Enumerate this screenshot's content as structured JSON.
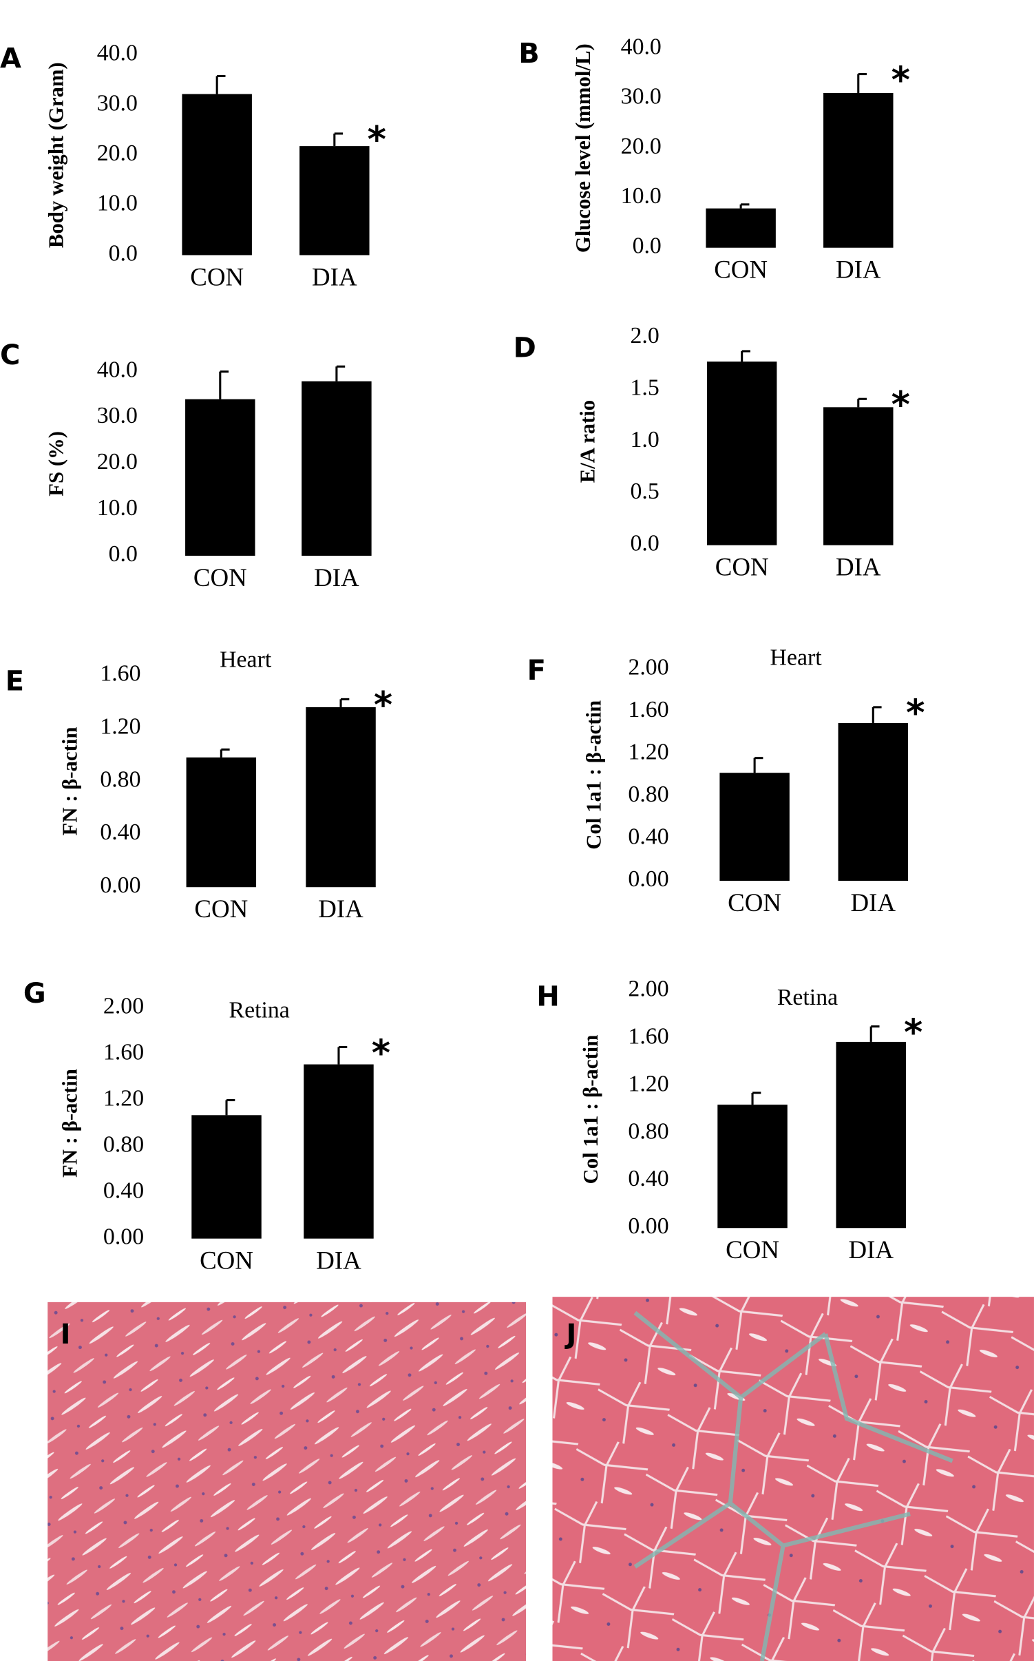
{
  "chart_data": [
    {
      "type": "bar",
      "panel": "A",
      "y_label": "Body weight (Gram)",
      "categories": [
        "CON",
        "DIA"
      ],
      "values": [
        32.2,
        21.8
      ],
      "errors": [
        3.6,
        2.5
      ],
      "color": "#000000",
      "ylim": [
        0,
        40
      ],
      "yticks": [
        {
          "value": 0,
          "label": "0.0"
        },
        {
          "value": 10,
          "label": "10.0"
        },
        {
          "value": 20,
          "label": "20.0"
        },
        {
          "value": 30,
          "label": "30.0"
        },
        {
          "value": 40,
          "label": "40.0"
        }
      ],
      "annotation": "*"
    },
    {
      "type": "bar",
      "panel": "B",
      "y_label": "Glucose level (mmol/L)",
      "categories": [
        "CON",
        "DIA"
      ],
      "values": [
        7.9,
        31.1
      ],
      "errors": [
        0.8,
        3.8
      ],
      "color": "#000000",
      "ylim": [
        0,
        40
      ],
      "yticks": [
        {
          "value": 0,
          "label": "0.0"
        },
        {
          "value": 10,
          "label": "10.0"
        },
        {
          "value": 20,
          "label": "20.0"
        },
        {
          "value": 30,
          "label": "30.0"
        },
        {
          "value": 40,
          "label": "40.0"
        }
      ],
      "annotation": "*"
    },
    {
      "type": "bar",
      "panel": "C",
      "y_label": "FS (%)",
      "categories": [
        "CON",
        "DIA"
      ],
      "values": [
        34.0,
        37.9
      ],
      "errors": [
        6.0,
        3.2
      ],
      "color": "#000000",
      "ylim": [
        0,
        40
      ],
      "yticks": [
        {
          "value": 0,
          "label": "0.0"
        },
        {
          "value": 10,
          "label": "10.0"
        },
        {
          "value": 20,
          "label": "20.0"
        },
        {
          "value": 30,
          "label": "30.0"
        },
        {
          "value": 40,
          "label": "40.0"
        }
      ]
    },
    {
      "type": "bar",
      "panel": "D",
      "y_label": "E/A ratio",
      "categories": [
        "CON",
        "DIA"
      ],
      "values": [
        1.77,
        1.33
      ],
      "errors": [
        0.1,
        0.08
      ],
      "color": "#000000",
      "ylim": [
        0,
        2
      ],
      "yticks": [
        {
          "value": 0,
          "label": "0.0"
        },
        0.5,
        {
          "value": 1,
          "label": "1.0"
        },
        1.5,
        {
          "value": 2,
          "label": "2.0"
        }
      ],
      "annotation": "*"
    },
    {
      "type": "bar",
      "panel": "E",
      "title": "Heart",
      "y_label": "FN : β-actin",
      "categories": [
        "CON",
        "DIA"
      ],
      "values": [
        0.98,
        1.36
      ],
      "errors": [
        0.06,
        0.06
      ],
      "color": "#000000",
      "ylim": [
        0,
        1.6
      ],
      "yticks": [
        {
          "value": 0,
          "label": "0.00"
        },
        {
          "value": 0.4,
          "label": "0.40"
        },
        {
          "value": 0.8,
          "label": "0.80"
        },
        {
          "value": 1.2,
          "label": "1.20"
        },
        {
          "value": 1.6,
          "label": "1.60"
        }
      ],
      "annotation": "*"
    },
    {
      "type": "bar",
      "panel": "F",
      "title": "Heart",
      "y_label": "Col 1a1 : β-actin",
      "categories": [
        "CON",
        "DIA"
      ],
      "values": [
        1.02,
        1.49
      ],
      "errors": [
        0.14,
        0.15
      ],
      "color": "#000000",
      "ylim": [
        0,
        2
      ],
      "yticks": [
        {
          "value": 0,
          "label": "0.00"
        },
        {
          "value": 0.4,
          "label": "0.40"
        },
        {
          "value": 0.8,
          "label": "0.80"
        },
        {
          "value": 1.2,
          "label": "1.20"
        },
        {
          "value": 1.6,
          "label": "1.60"
        },
        {
          "value": 2,
          "label": "2.00"
        }
      ],
      "annotation": "*"
    },
    {
      "type": "bar",
      "panel": "G",
      "title": "Retina",
      "y_label": "FN : β-actin",
      "categories": [
        "CON",
        "DIA"
      ],
      "values": [
        1.07,
        1.51
      ],
      "errors": [
        0.13,
        0.15
      ],
      "color": "#000000",
      "ylim": [
        0,
        2
      ],
      "yticks": [
        {
          "value": 0,
          "label": "0.00"
        },
        {
          "value": 0.4,
          "label": "0.40"
        },
        {
          "value": 0.8,
          "label": "0.80"
        },
        {
          "value": 1.2,
          "label": "1.20"
        },
        {
          "value": 1.6,
          "label": "1.60"
        },
        {
          "value": 2,
          "label": "2.00"
        }
      ],
      "annotation": "*"
    },
    {
      "type": "bar",
      "panel": "H",
      "title": "Retina",
      "y_label": "Col 1a1 : β-actin",
      "categories": [
        "CON",
        "DIA"
      ],
      "values": [
        1.04,
        1.57
      ],
      "errors": [
        0.1,
        0.13
      ],
      "color": "#000000",
      "ylim": [
        0,
        2
      ],
      "yticks": [
        {
          "value": 0,
          "label": "0.00"
        },
        {
          "value": 0.4,
          "label": "0.40"
        },
        {
          "value": 0.8,
          "label": "0.80"
        },
        {
          "value": 1.2,
          "label": "1.20"
        },
        {
          "value": 1.6,
          "label": "1.60"
        },
        {
          "value": 2,
          "label": "2.00"
        }
      ],
      "annotation": "*"
    }
  ],
  "images": [
    {
      "label": "I"
    },
    {
      "label": "J"
    }
  ]
}
